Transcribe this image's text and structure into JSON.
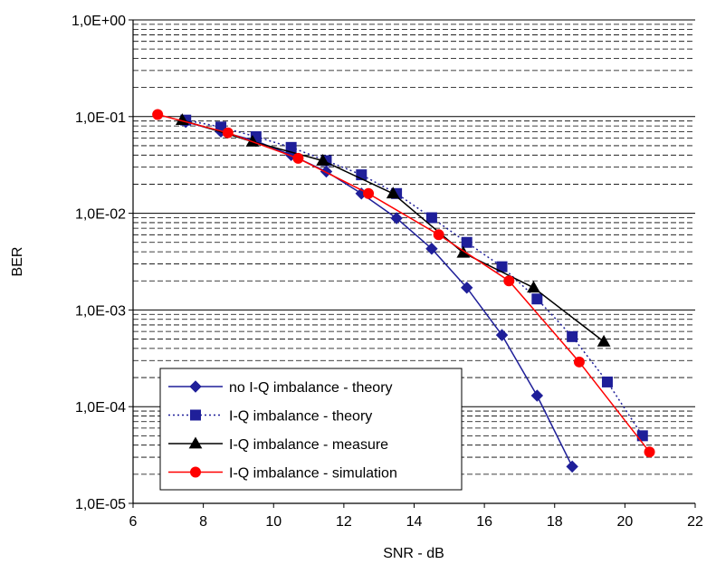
{
  "chart_data": {
    "type": "line",
    "title": "",
    "xlabel": "SNR - dB",
    "ylabel": "BER",
    "xlim": [
      6,
      22
    ],
    "ylim": [
      1e-05,
      1
    ],
    "yscale": "log",
    "xticks": [
      6,
      8,
      10,
      12,
      14,
      16,
      18,
      20,
      22
    ],
    "yticks": [
      1e-05,
      0.0001,
      0.001,
      0.01,
      0.1,
      1
    ],
    "ytick_labels": [
      "1,0E-05",
      "1,0E-04",
      "1,0E-03",
      "1,0E-02",
      "1,0E-01",
      "1,0E+00"
    ],
    "grid": "major solid, minor dashed (horizontal)",
    "legend_position": "bottom-left",
    "series": [
      {
        "name": "no I-Q imbalance - theory",
        "color": "#1f1f99",
        "line_style": "solid",
        "marker": "diamond",
        "x": [
          7.5,
          8.5,
          9.5,
          10.5,
          11.5,
          12.5,
          13.5,
          14.5,
          15.5,
          16.5,
          17.5,
          18.5
        ],
        "y": [
          0.088,
          0.07,
          0.056,
          0.04,
          0.027,
          0.016,
          0.0089,
          0.0043,
          0.0017,
          0.00055,
          0.00013,
          2.4e-05
        ]
      },
      {
        "name": "I-Q imbalance - theory",
        "color": "#1f1f99",
        "line_style": "dotted",
        "marker": "square",
        "x": [
          7.5,
          8.5,
          9.5,
          10.5,
          11.5,
          12.5,
          13.5,
          14.5,
          15.5,
          16.5,
          17.5,
          18.5,
          19.5,
          20.5
        ],
        "y": [
          0.092,
          0.078,
          0.062,
          0.048,
          0.035,
          0.025,
          0.016,
          0.009,
          0.005,
          0.0028,
          0.0013,
          0.00053,
          0.00018,
          5e-05
        ]
      },
      {
        "name": "I-Q imbalance - measure",
        "color": "#000000",
        "line_style": "solid",
        "marker": "triangle",
        "x": [
          7.4,
          9.4,
          11.4,
          13.4,
          15.4,
          17.4,
          19.4
        ],
        "y": [
          0.092,
          0.055,
          0.035,
          0.016,
          0.0039,
          0.0017,
          0.00047
        ]
      },
      {
        "name": "I-Q imbalance - simulation",
        "color": "#ff0000",
        "line_style": "solid",
        "marker": "circle",
        "x": [
          6.7,
          8.7,
          10.7,
          12.7,
          14.7,
          16.7,
          18.7,
          20.7
        ],
        "y": [
          0.105,
          0.068,
          0.037,
          0.016,
          0.006,
          0.002,
          0.00029,
          3.4e-05
        ]
      }
    ]
  }
}
